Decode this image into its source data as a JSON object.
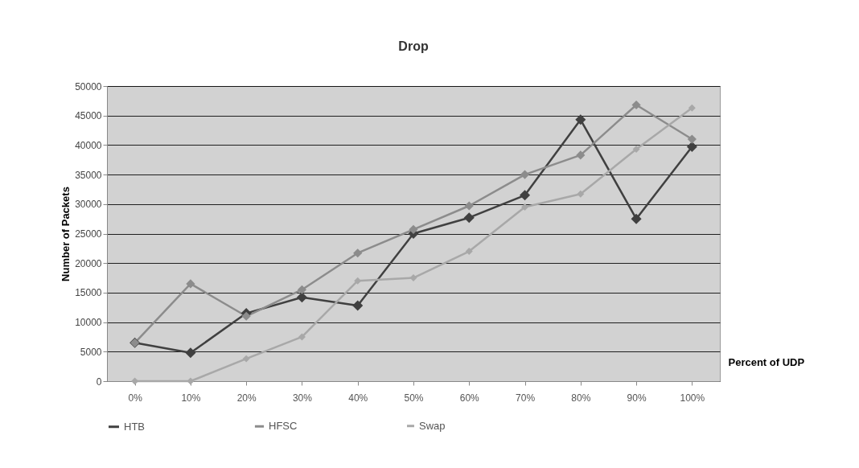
{
  "chart_data": {
    "type": "line",
    "title": "Drop",
    "xlabel": "Percent of UDP",
    "ylabel": "Number of Packets",
    "categories": [
      "0%",
      "10%",
      "20%",
      "30%",
      "40%",
      "50%",
      "60%",
      "70%",
      "80%",
      "90%",
      "100%"
    ],
    "series": [
      {
        "name": "HTB",
        "color": "#404040",
        "values": [
          6500,
          4800,
          11500,
          14200,
          12800,
          25000,
          27700,
          31500,
          44300,
          27500,
          39700
        ]
      },
      {
        "name": "HFSC",
        "color": "#8c8c8c",
        "values": [
          6500,
          16500,
          11000,
          15500,
          21700,
          25700,
          29700,
          35000,
          38300,
          46800,
          41000
        ]
      },
      {
        "name": "Swap",
        "color": "#a8a8a8",
        "values": [
          0,
          0,
          3800,
          7500,
          17000,
          17500,
          22000,
          29500,
          31700,
          39300,
          46300
        ]
      }
    ],
    "ylim": [
      0,
      50000
    ],
    "yticks": [
      0,
      5000,
      10000,
      15000,
      20000,
      25000,
      30000,
      35000,
      40000,
      45000,
      50000
    ],
    "grid": "y",
    "legend": "bottom",
    "marker": "diamond",
    "line_style": "solid"
  }
}
